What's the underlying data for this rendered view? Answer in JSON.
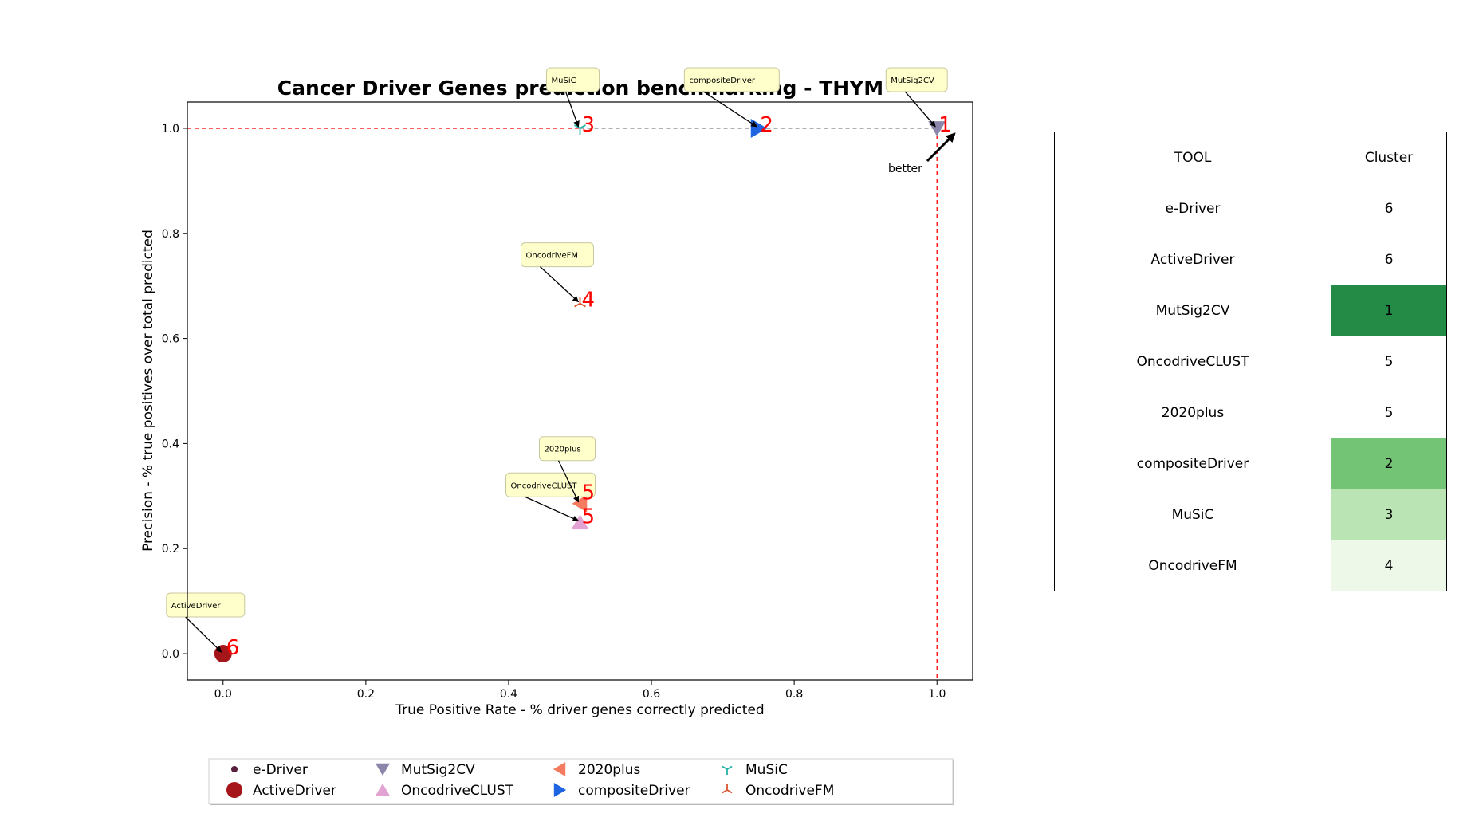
{
  "chart_data": {
    "type": "scatter",
    "title": "Cancer Driver Genes prediction benchmarking - THYM",
    "xlabel": "True Positive Rate - % driver genes correctly predicted",
    "ylabel": "Precision - % true positives over total predicted",
    "xlim": [
      -0.05,
      1.05
    ],
    "ylim": [
      -0.05,
      1.05
    ],
    "xticks": [
      "0.0",
      "0.2",
      "0.4",
      "0.6",
      "0.8",
      "1.0"
    ],
    "yticks": [
      "0.0",
      "0.2",
      "0.4",
      "0.6",
      "0.8",
      "1.0"
    ],
    "grid": false,
    "series": [
      {
        "name": "e-Driver",
        "x": 0.0,
        "y": 0.0,
        "marker": "circle-small",
        "color": "#5a1f3f",
        "rank": null,
        "label": null
      },
      {
        "name": "ActiveDriver",
        "x": 0.0,
        "y": 0.0,
        "marker": "circle",
        "color": "#a5161a",
        "rank": "6",
        "label": "ActiveDriver"
      },
      {
        "name": "MutSig2CV",
        "x": 1.0,
        "y": 1.0,
        "marker": "triangle-down",
        "color": "#8c86aa",
        "rank": "1",
        "label": "MutSig2CV"
      },
      {
        "name": "OncodriveCLUST",
        "x": 0.5,
        "y": 0.25,
        "marker": "triangle-up",
        "color": "#e3a3d2",
        "rank": "5",
        "label": "OncodriveCLUST"
      },
      {
        "name": "2020plus",
        "x": 0.5,
        "y": 0.2857,
        "marker": "triangle-left",
        "color": "#f47a60",
        "rank": "5",
        "label": "2020plus"
      },
      {
        "name": "compositeDriver",
        "x": 0.75,
        "y": 1.0,
        "marker": "triangle-right",
        "color": "#1f64e0",
        "rank": "2",
        "label": "compositeDriver"
      },
      {
        "name": "MuSiC",
        "x": 0.5,
        "y": 1.0,
        "marker": "tri-down",
        "color": "#20b3a5",
        "rank": "3",
        "label": "MuSiC"
      },
      {
        "name": "OncodriveFM",
        "x": 0.5,
        "y": 0.6667,
        "marker": "tri-up",
        "color": "#d9532b",
        "rank": "4",
        "label": "OncodriveFM"
      }
    ],
    "pareto_x": 1.0,
    "pareto_y": 1.0,
    "annotation": "better",
    "legend_placement": "bottom-center",
    "colors": {
      "rank": "#ff0000",
      "label_box": "#ffffcc",
      "pareto": "#ff0000",
      "frontier": "#808080"
    }
  },
  "table": {
    "headers": [
      "TOOL",
      "Cluster"
    ],
    "rows": [
      {
        "tool": "e-Driver",
        "cluster": "6",
        "color": "#ffffff"
      },
      {
        "tool": "ActiveDriver",
        "cluster": "6",
        "color": "#ffffff"
      },
      {
        "tool": "MutSig2CV",
        "cluster": "1",
        "color": "#238b45"
      },
      {
        "tool": "OncodriveCLUST",
        "cluster": "5",
        "color": "#ffffff"
      },
      {
        "tool": "2020plus",
        "cluster": "5",
        "color": "#ffffff"
      },
      {
        "tool": "compositeDriver",
        "cluster": "2",
        "color": "#74c476"
      },
      {
        "tool": "MuSiC",
        "cluster": "3",
        "color": "#bae4b3"
      },
      {
        "tool": "OncodriveFM",
        "cluster": "4",
        "color": "#edf8e9"
      }
    ]
  }
}
